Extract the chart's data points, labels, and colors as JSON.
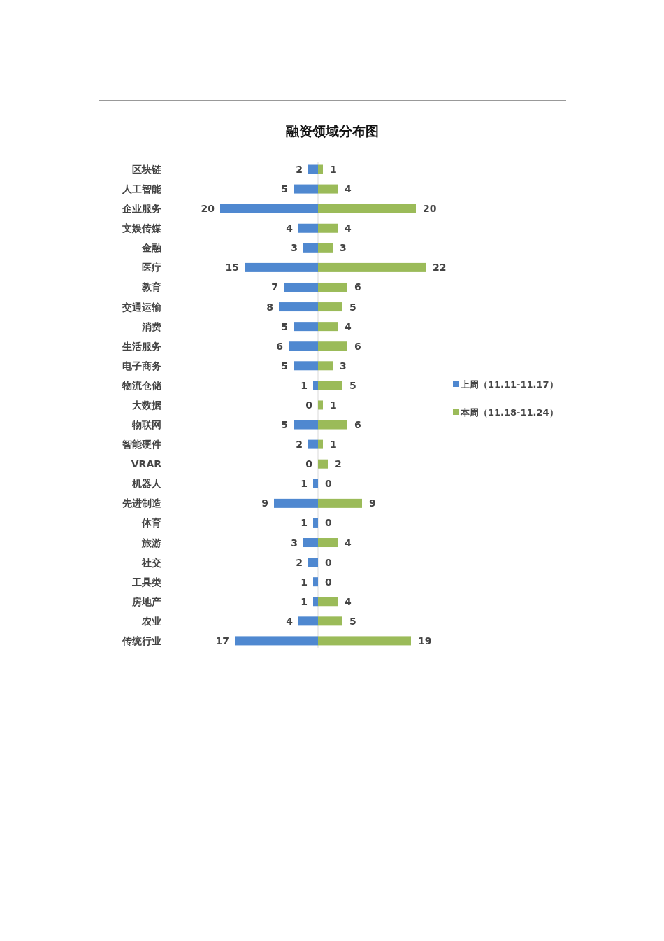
{
  "chart_data": [
    {
      "type": "bar",
      "orientation": "horizontal",
      "title": "融资领域分布图",
      "tick_labels": "y",
      "categories": [
        "区块链",
        "人工智能",
        "企业服务",
        "文娱传媒",
        "金融",
        "医疗",
        "教育",
        "交通运输",
        "消费",
        "生活服务",
        "电子商务",
        "物流仓储",
        "大数据",
        "物联网",
        "智能硬件",
        "VRAR",
        "机器人",
        "先进制造",
        "体育",
        "旅游",
        "社交",
        "工具类",
        "房地产",
        "农业",
        "传统行业"
      ],
      "series": [
        {
          "name": "上周（11.11-11.17）",
          "color": "#4f88d0",
          "values": [
            2,
            5,
            20,
            4,
            3,
            15,
            7,
            8,
            5,
            6,
            5,
            1,
            0,
            5,
            2,
            0,
            1,
            9,
            1,
            3,
            2,
            1,
            1,
            4,
            17
          ]
        }
      ],
      "data_labels": true,
      "legend": "right"
    },
    {
      "type": "bar",
      "orientation": "horizontal",
      "tick_labels": false,
      "categories": [
        null,
        null,
        null,
        null,
        null,
        null,
        null,
        null,
        null,
        null,
        null,
        null,
        null,
        null,
        null,
        null,
        null,
        null,
        null,
        null,
        null,
        null,
        null,
        null,
        null
      ],
      "series": [
        {
          "name": "本周（11.18-11.24）",
          "color": "#9bbb59",
          "values": [
            1,
            4,
            20,
            4,
            3,
            22,
            6,
            5,
            4,
            6,
            3,
            5,
            1,
            6,
            1,
            2,
            0,
            9,
            0,
            4,
            0,
            0,
            4,
            5,
            19
          ]
        }
      ],
      "data_labels": true,
      "legend": "right"
    }
  ]
}
